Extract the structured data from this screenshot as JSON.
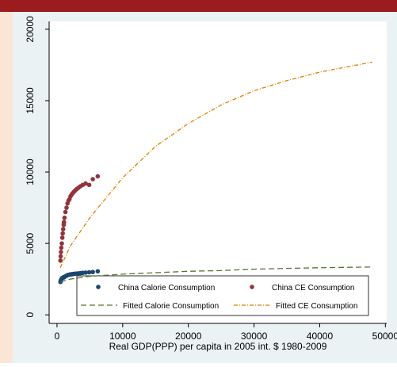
{
  "chart_data": {
    "type": "scatter",
    "xlabel": "Real GDP(PPP) per capita in 2005 int. $ 1980-2009",
    "xlim": [
      -1200,
      50200
    ],
    "xticks": [
      0,
      10000,
      20000,
      30000,
      40000,
      50000
    ],
    "ylim": [
      -600,
      20550
    ],
    "yticks": [
      0,
      5000,
      10000,
      15000,
      20000
    ],
    "grid": false,
    "series": [
      {
        "name": "China Calorie Consumption",
        "color": "#1a476f",
        "mode": "points",
        "x": [
          524,
          560,
          600,
          650,
          730,
          810,
          870,
          940,
          1020,
          1040,
          1060,
          1140,
          1280,
          1450,
          1600,
          1750,
          1900,
          2050,
          2200,
          2350,
          2550,
          2750,
          2980,
          3250,
          3560,
          3920,
          4360,
          4900,
          5450,
          6200
        ],
        "values": [
          2300,
          2350,
          2420,
          2480,
          2540,
          2580,
          2600,
          2620,
          2640,
          2630,
          2620,
          2660,
          2700,
          2740,
          2780,
          2800,
          2820,
          2830,
          2840,
          2850,
          2870,
          2880,
          2890,
          2900,
          2920,
          2940,
          2960,
          2980,
          3000,
          3050
        ]
      },
      {
        "name": "China CE Consumption",
        "color": "#90353b",
        "mode": "points",
        "x": [
          524,
          560,
          600,
          650,
          730,
          810,
          870,
          940,
          1020,
          1040,
          1060,
          1140,
          1280,
          1450,
          1600,
          1750,
          1900,
          2050,
          2200,
          2350,
          2550,
          2750,
          2980,
          3250,
          3560,
          3920,
          4360,
          4900,
          5450,
          6200
        ],
        "values": [
          3800,
          4100,
          4400,
          4700,
          5000,
          5400,
          5700,
          6000,
          6300,
          6400,
          6500,
          6800,
          7200,
          7500,
          7800,
          8000,
          8100,
          8300,
          8400,
          8500,
          8600,
          8700,
          8800,
          8900,
          9000,
          9100,
          9200,
          9100,
          9500,
          9700
        ]
      },
      {
        "name": "Fitted Calorie Consumption",
        "color": "#55752f",
        "mode": "line",
        "dash": "7 4",
        "x": [
          500,
          2000,
          5000,
          10000,
          15000,
          20000,
          25000,
          30000,
          35000,
          40000,
          48000
        ],
        "values": [
          2300,
          2500,
          2700,
          2850,
          2950,
          3050,
          3100,
          3200,
          3250,
          3300,
          3350
        ]
      },
      {
        "name": "Fitted CE Consumption",
        "color": "#e37e00",
        "mode": "line",
        "dash": "5 2 1 2",
        "x": [
          500,
          2000,
          5000,
          10000,
          15000,
          20000,
          25000,
          30000,
          35000,
          40000,
          48000
        ],
        "values": [
          3300,
          4800,
          6800,
          9600,
          11800,
          13400,
          14700,
          15700,
          16400,
          17000,
          17700
        ]
      }
    ]
  }
}
